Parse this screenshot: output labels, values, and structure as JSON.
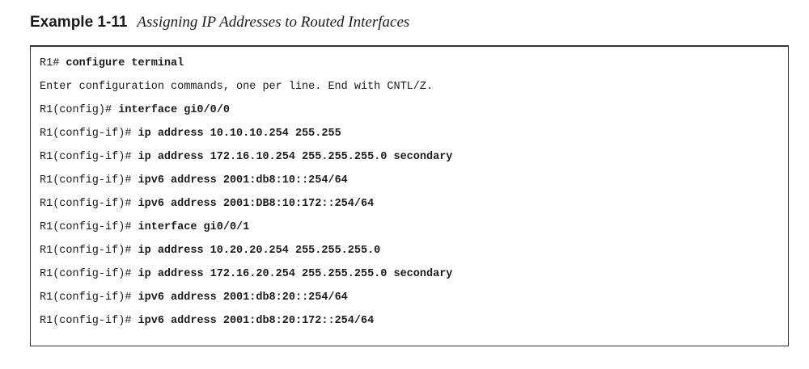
{
  "example": {
    "label": "Example 1-11",
    "caption": "Assigning IP Addresses to Routed Interfaces"
  },
  "code_lines": [
    {
      "prompt": "R1# ",
      "command": "configure terminal"
    },
    {
      "prompt": "Enter configuration commands, one per line. End with CNTL/Z.",
      "command": ""
    },
    {
      "prompt": "R1(config)# ",
      "command": "interface gi0/0/0"
    },
    {
      "prompt": "R1(config-if)# ",
      "command": "ip address 10.10.10.254 255.255"
    },
    {
      "prompt": "R1(config-if)# ",
      "command": "ip address 172.16.10.254 255.255.255.0 secondary"
    },
    {
      "prompt": "R1(config-if)# ",
      "command": "ipv6 address 2001:db8:10::254/64"
    },
    {
      "prompt": "R1(config-if)# ",
      "command": "ipv6 address 2001:DB8:10:172::254/64"
    },
    {
      "prompt": "R1(config-if)# ",
      "command": "interface gi0/0/1"
    },
    {
      "prompt": "R1(config-if)# ",
      "command": "ip address 10.20.20.254 255.255.255.0"
    },
    {
      "prompt": "R1(config-if)# ",
      "command": "ip address 172.16.20.254 255.255.255.0 secondary"
    },
    {
      "prompt": "R1(config-if)# ",
      "command": "ipv6 address 2001:db8:20::254/64"
    },
    {
      "prompt": "R1(config-if)# ",
      "command": "ipv6 address 2001:db8:20:172::254/64"
    }
  ]
}
